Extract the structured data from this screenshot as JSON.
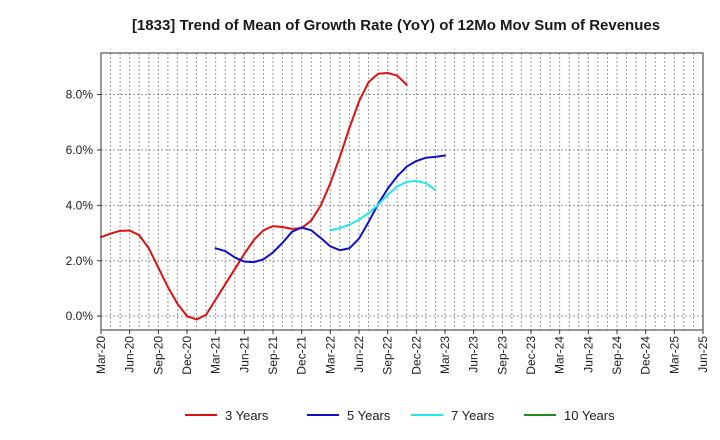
{
  "chart_data": {
    "type": "line",
    "title": "[1833]  Trend of Mean of Growth Rate (YoY) of 12Mo Mov Sum of Revenues",
    "xlabel": "",
    "ylabel": "",
    "ylim": [
      -0.5,
      9.5
    ],
    "y_ticks": [
      0.0,
      2.0,
      4.0,
      6.0,
      8.0
    ],
    "y_tick_labels": [
      "0.0%",
      "2.0%",
      "4.0%",
      "6.0%",
      "8.0%"
    ],
    "x_tick_labels": [
      "Mar-20",
      "Jun-20",
      "Sep-20",
      "Dec-20",
      "Mar-21",
      "Jun-21",
      "Sep-21",
      "Dec-21",
      "Mar-22",
      "Jun-22",
      "Sep-22",
      "Dec-22",
      "Mar-23",
      "Jun-23",
      "Sep-23",
      "Dec-23",
      "Mar-24",
      "Jun-24",
      "Sep-24",
      "Dec-24",
      "Mar-25",
      "Jun-25"
    ],
    "grid": true,
    "legend_position": "bottom",
    "series": [
      {
        "name": "3 Years",
        "color": "#dd1111",
        "start_index": 0,
        "values": [
          2.85,
          2.98,
          3.08,
          3.09,
          2.92,
          2.45,
          1.75,
          1.05,
          0.45,
          0.0,
          -0.12,
          0.05,
          0.6,
          1.15,
          1.7,
          2.25,
          2.75,
          3.1,
          3.25,
          3.22,
          3.15,
          3.18,
          3.45,
          4.0,
          4.8,
          5.75,
          6.8,
          7.75,
          8.45,
          8.75,
          8.78,
          8.68,
          8.35
        ]
      },
      {
        "name": "5 Years",
        "color": "#1111cc",
        "start_index": 12,
        "values": [
          2.45,
          2.35,
          2.12,
          1.97,
          1.95,
          2.05,
          2.3,
          2.65,
          3.05,
          3.2,
          3.1,
          2.82,
          2.52,
          2.38,
          2.45,
          2.8,
          3.4,
          4.05,
          4.6,
          5.05,
          5.4,
          5.6,
          5.72,
          5.75,
          5.8
        ]
      },
      {
        "name": "7 Years",
        "color": "#22e6f0",
        "start_index": 24,
        "values": [
          3.1,
          3.18,
          3.3,
          3.48,
          3.72,
          4.02,
          4.38,
          4.68,
          4.85,
          4.88,
          4.8,
          4.55
        ]
      },
      {
        "name": "10 Years",
        "color": "#228b22",
        "start_index": 0,
        "values": []
      }
    ]
  }
}
